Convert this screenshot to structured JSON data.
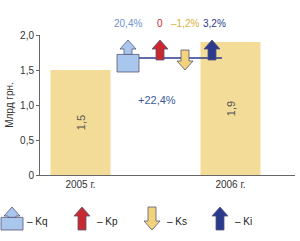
{
  "chart_data": {
    "type": "bar",
    "categories": [
      "2005 г.",
      "2006 г."
    ],
    "values": [
      1.5,
      1.9
    ],
    "value_labels": [
      "1,5",
      "1,9"
    ],
    "data_labels": true,
    "color": "#f3dc97",
    "y_label": "Млрд грн.",
    "ylim": [
      0,
      2
    ],
    "yticks": [
      0,
      {
        "value": 0.5,
        "label": "0,5"
      },
      {
        "value": 1,
        "label": "1,0"
      },
      {
        "value": 1.5,
        "label": "1,5"
      },
      {
        "value": 2,
        "label": "2,0"
      }
    ],
    "grid": false,
    "change": 22.4,
    "change_label": "+22,4%",
    "factors": [
      {
        "name": "– Kq",
        "color": "#a9c6ec",
        "marker": "box-arrow",
        "value": 20.4,
        "value_label": "20,4%"
      },
      {
        "name": "– Kp",
        "color": "#c8282e",
        "marker": "arrow",
        "value": 0
      },
      {
        "name": "– Ks",
        "color": "#f2d27a",
        "marker": "arrow",
        "value": -1.2,
        "value_label": "–1,2%"
      },
      {
        "name": "– Ki",
        "color": "#2b3a8c",
        "marker": "arrow",
        "value": 3.2,
        "value_label": "3,2%"
      }
    ]
  }
}
